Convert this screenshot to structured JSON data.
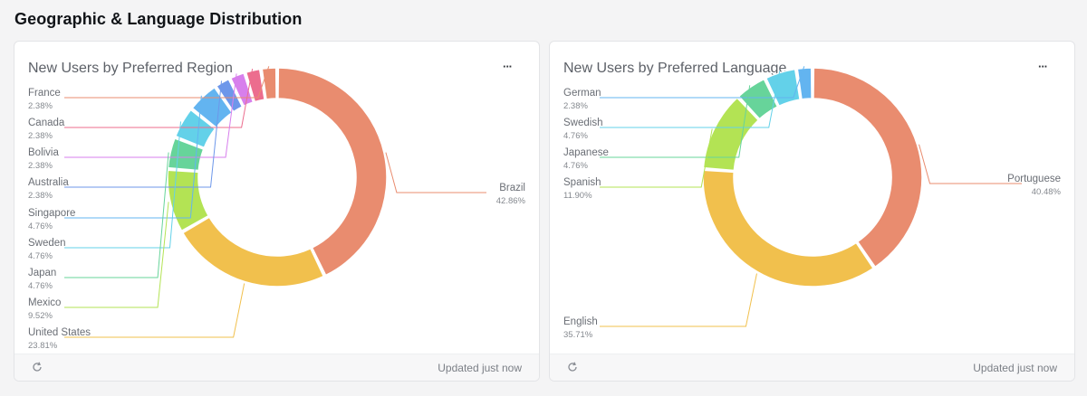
{
  "page": {
    "section_title": "Geographic & Language Distribution"
  },
  "cards": [
    {
      "title": "New Users by Preferred Region",
      "more_label": "···",
      "footer": {
        "updated": "Updated just now",
        "refresh_icon": "refresh-icon"
      }
    },
    {
      "title": "New Users by Preferred Language",
      "more_label": "···",
      "footer": {
        "updated": "Updated just now",
        "refresh_icon": "refresh-icon"
      }
    }
  ],
  "chart_data": [
    {
      "type": "pie",
      "variant": "donut",
      "title": "New Users by Preferred Region",
      "slices": [
        {
          "label": "Brazil",
          "value": 42.86,
          "pct_label": "42.86%",
          "color": "#e98c6f"
        },
        {
          "label": "United States",
          "value": 23.81,
          "pct_label": "23.81%",
          "color": "#f1c04d"
        },
        {
          "label": "Mexico",
          "value": 9.52,
          "pct_label": "9.52%",
          "color": "#b3e354"
        },
        {
          "label": "Japan",
          "value": 4.76,
          "pct_label": "4.76%",
          "color": "#67d49a"
        },
        {
          "label": "Sweden",
          "value": 4.76,
          "pct_label": "4.76%",
          "color": "#63d1e9"
        },
        {
          "label": "Singapore",
          "value": 4.76,
          "pct_label": "4.76%",
          "color": "#63b4f0"
        },
        {
          "label": "Australia",
          "value": 2.38,
          "pct_label": "2.38%",
          "color": "#6d97ea"
        },
        {
          "label": "Bolivia",
          "value": 2.38,
          "pct_label": "2.38%",
          "color": "#d77fec"
        },
        {
          "label": "Canada",
          "value": 2.38,
          "pct_label": "2.38%",
          "color": "#ec6d8e"
        },
        {
          "label": "France",
          "value": 2.38,
          "pct_label": "2.38%",
          "color": "#e98c6f"
        }
      ]
    },
    {
      "type": "pie",
      "variant": "donut",
      "title": "New Users by Preferred Language",
      "slices": [
        {
          "label": "Portuguese",
          "value": 40.48,
          "pct_label": "40.48%",
          "color": "#e98c6f"
        },
        {
          "label": "English",
          "value": 35.71,
          "pct_label": "35.71%",
          "color": "#f1c04d"
        },
        {
          "label": "Spanish",
          "value": 11.9,
          "pct_label": "11.90%",
          "color": "#b3e354"
        },
        {
          "label": "Japanese",
          "value": 4.76,
          "pct_label": "4.76%",
          "color": "#67d49a"
        },
        {
          "label": "Swedish",
          "value": 4.76,
          "pct_label": "4.76%",
          "color": "#63d1e9"
        },
        {
          "label": "German",
          "value": 2.38,
          "pct_label": "2.38%",
          "color": "#63b4f0"
        }
      ]
    }
  ]
}
